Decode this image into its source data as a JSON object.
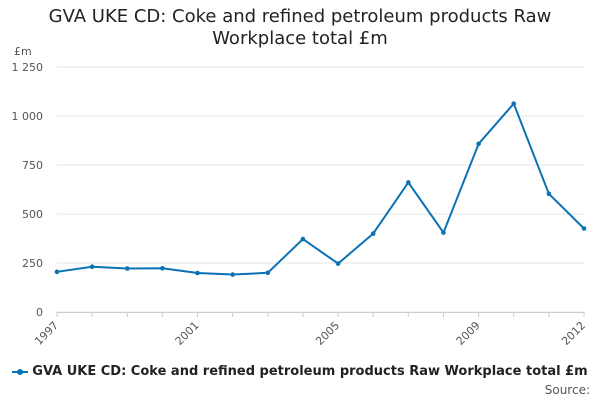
{
  "chart_data": {
    "type": "line",
    "title_lines": [
      "GVA UKE CD: Coke and refined petroleum products Raw",
      "Workplace total £m"
    ],
    "unit_label": "£m",
    "xlabel": "",
    "ylabel": "",
    "ylim": [
      0,
      1250
    ],
    "yticks": [
      0,
      250,
      500,
      750,
      1000,
      1250
    ],
    "ytick_labels": [
      "0",
      "250",
      "500",
      "750",
      "1 000",
      "1 250"
    ],
    "xlim": [
      1997,
      2012
    ],
    "xticks": [
      "1997",
      "2001",
      "2005",
      "2009",
      "2012"
    ],
    "grid": true,
    "legend_position": "bottom",
    "series": [
      {
        "name": "GVA UKE CD: Coke and refined petroleum products Raw Workplace total £m",
        "color": "#0b72b5",
        "x": [
          1997,
          1998,
          1999,
          2000,
          2001,
          2002,
          2003,
          2004,
          2005,
          2006,
          2007,
          2008,
          2009,
          2010,
          2011,
          2012
        ],
        "values": [
          205,
          231,
          222,
          223,
          199,
          191,
          200,
          372,
          247,
          400,
          661,
          405,
          858,
          1063,
          603,
          426
        ]
      }
    ]
  },
  "source_label": "Source:"
}
